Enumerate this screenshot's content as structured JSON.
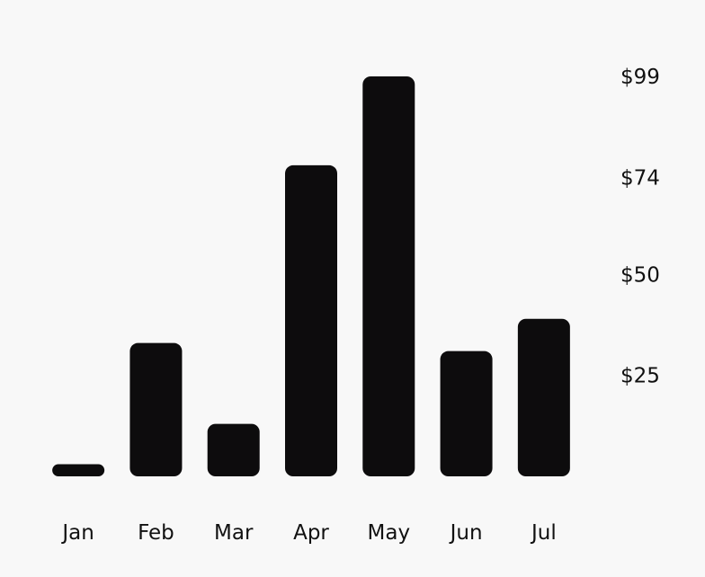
{
  "chart_data": {
    "type": "bar",
    "categories": [
      "Jan",
      "Feb",
      "Mar",
      "Apr",
      "May",
      "Jun",
      "Jul"
    ],
    "values": [
      3,
      33,
      13,
      77,
      99,
      31,
      39
    ],
    "title": "",
    "xlabel": "",
    "ylabel": "",
    "ylim": [
      0,
      99
    ],
    "yticks": [
      25,
      50,
      74,
      99
    ],
    "ytick_labels": [
      "$25",
      "$50",
      "$74",
      "$99"
    ],
    "y_axis_position": "right",
    "grid": false,
    "legend": "none",
    "colors": {
      "bar": "#0d0c0d",
      "background": "#f8f8f8",
      "text": "#111111"
    }
  }
}
